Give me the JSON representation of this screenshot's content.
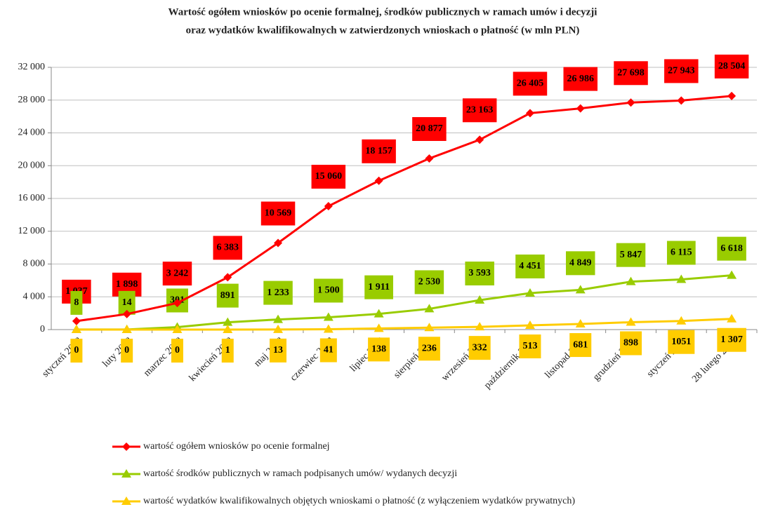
{
  "chart_data": {
    "type": "line",
    "title": [
      "Wartość ogółem wniosków po ocenie formalnej, środków publicznych w ramach umów  i decyzji",
      "oraz wydatków kwalifikowalnych w zatwierdzonych wnioskach o płatność (w mln PLN)"
    ],
    "categories": [
      "styczeń 2008",
      "luty 2008",
      "marzec 2008",
      "kwiecień 2008",
      "maj 2008",
      "czerwiec 2008",
      "lipiec 2008",
      "sierpień 2008",
      "wrzesień 2008",
      "październik 2008",
      "listopad 2008",
      "grudzień 2008",
      "styczeń 2009",
      "28 lutego 2009"
    ],
    "series": [
      {
        "name": "wartość ogółem wniosków po ocenie formalnej",
        "color": "#ff0000",
        "marker": "diamond",
        "values": [
          1037,
          1898,
          3242,
          6383,
          10569,
          15060,
          18157,
          20877,
          23163,
          26405,
          26986,
          27698,
          27943,
          28504
        ],
        "value_labels": [
          "1 037",
          "1 898",
          "3 242",
          "6 383",
          "10 569",
          "15 060",
          "18 157",
          "20 877",
          "23 163",
          "26 405",
          "26 986",
          "27 698",
          "27 943",
          "28 504"
        ]
      },
      {
        "name": "wartość środków publicznych w ramach podpisanych umów/ wydanych decyzji",
        "color": "#99cc00",
        "marker": "triangle",
        "values": [
          8,
          14,
          301,
          891,
          1233,
          1500,
          1911,
          2530,
          3593,
          4451,
          4849,
          5847,
          6115,
          6618
        ],
        "value_labels": [
          "8",
          "14",
          "301",
          "891",
          "1 233",
          "1 500",
          "1 911",
          "2 530",
          "3 593",
          "4 451",
          "4 849",
          "5 847",
          "6 115",
          "6 618"
        ]
      },
      {
        "name": "wartość wydatków kwalifikowalnych objętych wnioskami o płatność (z wyłączeniem wydatków prywatnych)",
        "color": "#ffcc00",
        "marker": "triangle",
        "values": [
          0,
          0,
          0,
          1,
          13,
          41,
          138,
          236,
          332,
          513,
          681,
          898,
          1051,
          1307
        ],
        "value_labels": [
          "0",
          "0",
          "0",
          "1",
          "13",
          "41",
          "138",
          "236",
          "332",
          "513",
          "681",
          "898",
          "1051",
          "1 307"
        ]
      }
    ],
    "ylim": [
      0,
      32000
    ],
    "yticks": [
      0,
      {
        "value": 4000,
        "label": "4 000"
      },
      {
        "value": 8000,
        "label": "8 000"
      },
      {
        "value": 12000,
        "label": "12 000"
      },
      {
        "value": 16000,
        "label": "16 000"
      },
      {
        "value": 20000,
        "label": "20 000"
      },
      {
        "value": 24000,
        "label": "24 000"
      },
      {
        "value": 28000,
        "label": "28 000"
      },
      {
        "value": 32000,
        "label": "32 000"
      }
    ],
    "grid": true
  }
}
